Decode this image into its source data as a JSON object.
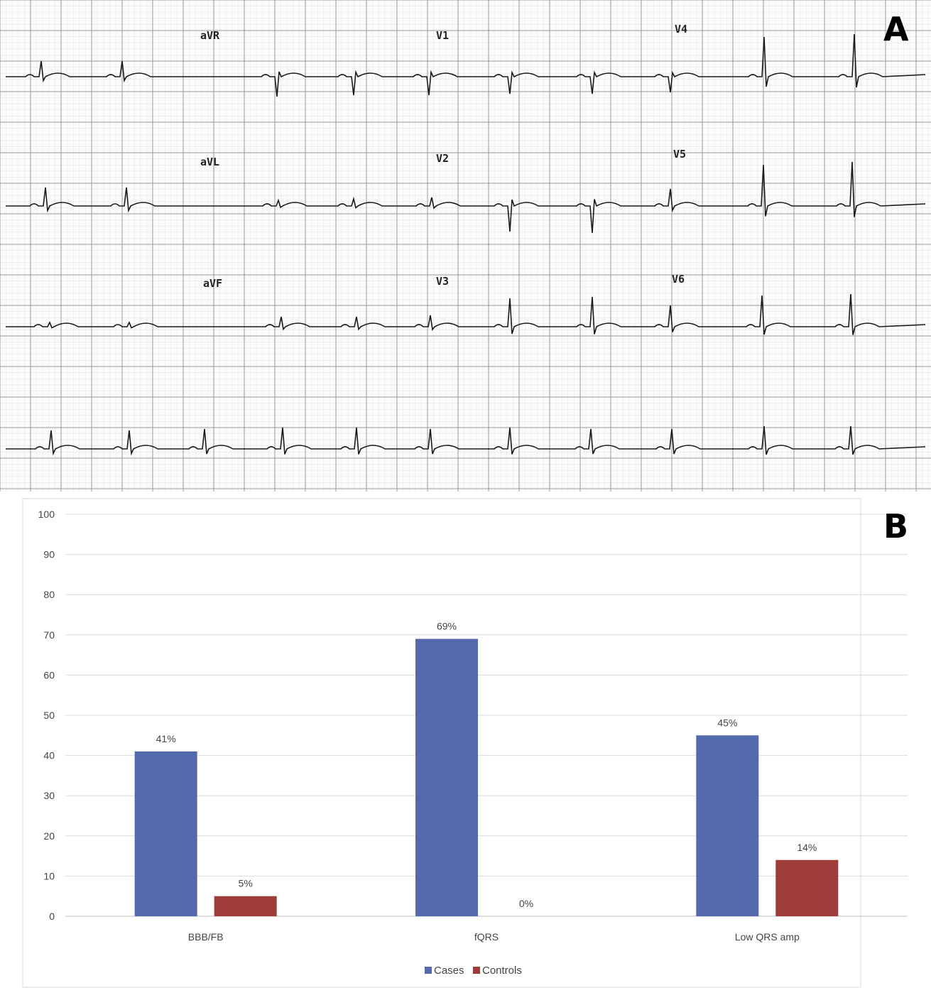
{
  "panel_a": {
    "letter": "A",
    "leads": [
      "aVR",
      "aVL",
      "aVF",
      "V1",
      "V2",
      "V3",
      "V4",
      "V5",
      "V6"
    ]
  },
  "panel_b": {
    "letter": "B"
  },
  "chart_data": {
    "type": "bar",
    "categories": [
      "BBB/FB",
      "fQRS",
      "Low QRS amp"
    ],
    "series": [
      {
        "name": "Cases",
        "values": [
          41,
          69,
          45
        ],
        "labels": [
          "41%",
          "69%",
          "45%"
        ],
        "color": "#5469ac"
      },
      {
        "name": "Controls",
        "values": [
          5,
          0,
          14
        ],
        "labels": [
          "5%",
          "0%",
          "14%"
        ],
        "color": "#9e3c3a"
      }
    ],
    "ylim": [
      0,
      100
    ],
    "yticks": [
      0,
      10,
      20,
      30,
      40,
      50,
      60,
      70,
      80,
      90,
      100
    ],
    "grid": true,
    "legend": "bottom-center",
    "title": "",
    "xlabel": "",
    "ylabel": ""
  }
}
